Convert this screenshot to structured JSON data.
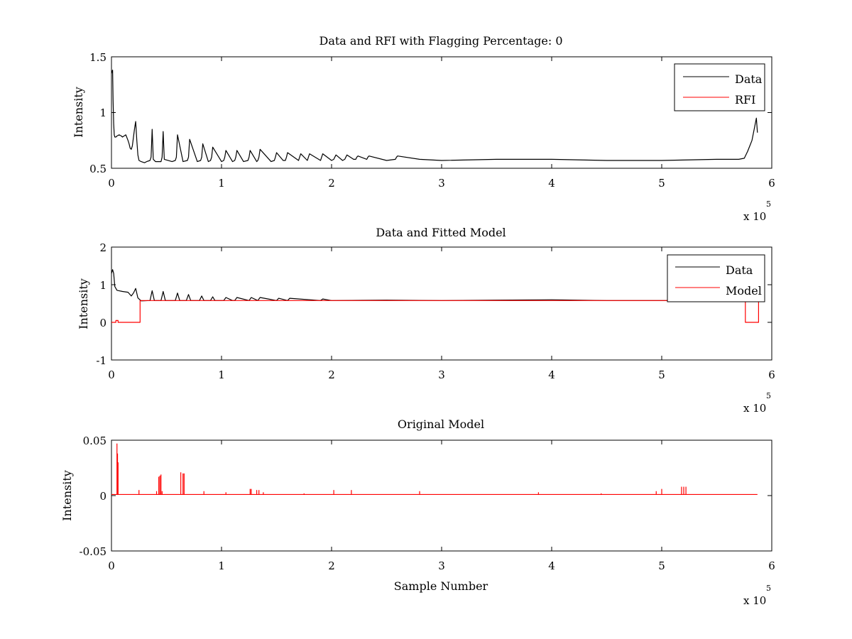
{
  "figure": {
    "background": "#ffffff"
  },
  "chart_data": [
    {
      "type": "line",
      "title": "Data and RFI with Flagging Percentage: 0",
      "xlabel": "",
      "ylabel": "Intensity",
      "xlim": [
        0,
        6
      ],
      "ylim": [
        0.5,
        1.5
      ],
      "xticks": [
        "0",
        "1",
        "2",
        "3",
        "4",
        "5",
        "6"
      ],
      "yticks": [
        "0.5",
        "1",
        "1.5"
      ],
      "x_multiplier": {
        "base": "x 10",
        "exponent": "5"
      },
      "legend": {
        "position": "top-right",
        "entries": [
          {
            "label": "Data",
            "color": "#000000"
          },
          {
            "label": "RFI",
            "color": "#ff0000"
          }
        ]
      },
      "series": [
        {
          "name": "Data",
          "color": "#000000",
          "x": [
            0,
            0.005,
            0.01,
            0.015,
            0.02,
            0.025,
            0.03,
            0.04,
            0.05,
            0.07,
            0.09,
            0.1,
            0.13,
            0.15,
            0.16,
            0.17,
            0.18,
            0.19,
            0.2,
            0.21,
            0.22,
            0.23,
            0.24,
            0.25,
            0.27,
            0.3,
            0.32,
            0.35,
            0.36,
            0.37,
            0.38,
            0.4,
            0.45,
            0.46,
            0.47,
            0.48,
            0.55,
            0.58,
            0.59,
            0.6,
            0.65,
            0.69,
            0.7,
            0.71,
            0.78,
            0.81,
            0.82,
            0.83,
            0.88,
            0.9,
            0.91,
            0.92,
            1.0,
            1.02,
            1.03,
            1.04,
            1.1,
            1.12,
            1.13,
            1.14,
            1.2,
            1.24,
            1.25,
            1.26,
            1.32,
            1.33,
            1.34,
            1.35,
            1.45,
            1.48,
            1.49,
            1.5,
            1.56,
            1.58,
            1.59,
            1.6,
            1.7,
            1.71,
            1.72,
            1.78,
            1.79,
            1.8,
            1.9,
            1.91,
            1.92,
            2.0,
            2.02,
            2.03,
            2.04,
            2.1,
            2.12,
            2.13,
            2.14,
            2.2,
            2.22,
            2.23,
            2.24,
            2.32,
            2.33,
            2.34,
            2.5,
            2.58,
            2.59,
            2.6,
            2.8,
            3.0,
            3.5,
            4.0,
            4.5,
            5.0,
            5.5,
            5.7,
            5.75,
            5.78,
            5.8,
            5.82,
            5.84,
            5.86,
            5.87
          ],
          "y": [
            1.35,
            1.37,
            1.38,
            1.1,
            0.9,
            0.8,
            0.78,
            0.78,
            0.79,
            0.8,
            0.79,
            0.78,
            0.8,
            0.75,
            0.72,
            0.68,
            0.67,
            0.7,
            0.78,
            0.86,
            0.92,
            0.75,
            0.62,
            0.57,
            0.56,
            0.55,
            0.56,
            0.57,
            0.6,
            0.85,
            0.58,
            0.56,
            0.56,
            0.6,
            0.83,
            0.58,
            0.56,
            0.57,
            0.6,
            0.8,
            0.56,
            0.57,
            0.6,
            0.76,
            0.56,
            0.57,
            0.6,
            0.72,
            0.56,
            0.57,
            0.6,
            0.69,
            0.56,
            0.57,
            0.6,
            0.66,
            0.56,
            0.57,
            0.6,
            0.66,
            0.56,
            0.57,
            0.6,
            0.66,
            0.56,
            0.57,
            0.6,
            0.67,
            0.56,
            0.57,
            0.6,
            0.64,
            0.57,
            0.57,
            0.6,
            0.64,
            0.57,
            0.6,
            0.63,
            0.57,
            0.6,
            0.63,
            0.57,
            0.6,
            0.63,
            0.57,
            0.58,
            0.6,
            0.62,
            0.57,
            0.58,
            0.6,
            0.62,
            0.58,
            0.58,
            0.6,
            0.61,
            0.58,
            0.6,
            0.61,
            0.57,
            0.58,
            0.6,
            0.61,
            0.58,
            0.57,
            0.58,
            0.58,
            0.57,
            0.57,
            0.58,
            0.58,
            0.59,
            0.65,
            0.7,
            0.75,
            0.85,
            0.95,
            0.82
          ]
        },
        {
          "name": "RFI",
          "color": "#ff0000",
          "x": [],
          "y": []
        }
      ]
    },
    {
      "type": "line",
      "title": "Data and Fitted Model",
      "xlabel": "",
      "ylabel": "Intensity",
      "xlim": [
        0,
        6
      ],
      "ylim": [
        -1,
        2
      ],
      "xticks": [
        "0",
        "1",
        "2",
        "3",
        "4",
        "5",
        "6"
      ],
      "yticks": [
        "-1",
        "0",
        "1",
        "2"
      ],
      "x_multiplier": {
        "base": "x 10",
        "exponent": "5"
      },
      "legend": {
        "position": "top-right",
        "entries": [
          {
            "label": "Data",
            "color": "#000000"
          },
          {
            "label": "Model",
            "color": "#ff0000"
          }
        ]
      },
      "series": [
        {
          "name": "Data",
          "color": "#000000",
          "x": [
            0,
            0.01,
            0.02,
            0.03,
            0.05,
            0.1,
            0.15,
            0.18,
            0.2,
            0.22,
            0.24,
            0.27,
            0.35,
            0.37,
            0.39,
            0.45,
            0.47,
            0.49,
            0.58,
            0.6,
            0.62,
            0.68,
            0.7,
            0.72,
            0.8,
            0.82,
            0.84,
            0.9,
            0.92,
            0.94,
            1.02,
            1.04,
            1.1,
            1.12,
            1.14,
            1.25,
            1.27,
            1.33,
            1.35,
            1.5,
            1.52,
            1.6,
            1.62,
            1.9,
            1.92,
            2.0,
            2.5,
            3.0,
            3.5,
            4.0,
            4.5,
            5.0,
            5.5,
            5.8,
            5.87
          ],
          "y": [
            1.3,
            1.4,
            1.3,
            0.95,
            0.85,
            0.82,
            0.8,
            0.7,
            0.78,
            0.9,
            0.65,
            0.57,
            0.58,
            0.84,
            0.58,
            0.58,
            0.82,
            0.58,
            0.58,
            0.78,
            0.58,
            0.58,
            0.74,
            0.58,
            0.58,
            0.7,
            0.58,
            0.58,
            0.68,
            0.58,
            0.58,
            0.66,
            0.58,
            0.58,
            0.66,
            0.58,
            0.66,
            0.58,
            0.66,
            0.58,
            0.64,
            0.58,
            0.64,
            0.58,
            0.62,
            0.58,
            0.59,
            0.58,
            0.59,
            0.6,
            0.58,
            0.58,
            0.58,
            0.58,
            0.58
          ]
        },
        {
          "name": "Model",
          "color": "#ff0000",
          "x": [
            0,
            0.04,
            0.04,
            0.06,
            0.06,
            0.26,
            0.26,
            5.76,
            5.76,
            5.88,
            5.88
          ],
          "y": [
            0,
            0,
            0.05,
            0.05,
            0,
            0,
            0.58,
            0.58,
            0,
            0,
            0.58
          ]
        }
      ]
    },
    {
      "type": "line",
      "title": "Original Model",
      "xlabel": "Sample Number",
      "ylabel": "Intensity",
      "xlim": [
        0,
        6
      ],
      "ylim": [
        -0.05,
        0.05
      ],
      "xticks": [
        "0",
        "1",
        "2",
        "3",
        "4",
        "5",
        "6"
      ],
      "yticks": [
        "-0.05",
        "0",
        "0.05"
      ],
      "x_multiplier": {
        "base": "x 10",
        "exponent": "5"
      },
      "legend": null,
      "series": [
        {
          "name": "",
          "color": "#ff0000",
          "baseline": {
            "x": [
              0,
              5.87
            ],
            "y": 0.001
          },
          "spikes": {
            "x": [
              0.05,
              0.055,
              0.06,
              0.25,
              0.41,
              0.43,
              0.44,
              0.45,
              0.46,
              0.63,
              0.65,
              0.66,
              0.84,
              1.04,
              1.26,
              1.27,
              1.32,
              1.34,
              1.38,
              1.75,
              2.02,
              2.18,
              2.8,
              3.88,
              4.45,
              4.95,
              5.0,
              5.18,
              5.2,
              5.22
            ],
            "y": [
              0.047,
              0.038,
              0.03,
              0.005,
              0.004,
              0.017,
              0.018,
              0.019,
              0.004,
              0.021,
              0.02,
              0.02,
              0.004,
              0.003,
              0.006,
              0.006,
              0.005,
              0.005,
              0.003,
              0.002,
              0.005,
              0.005,
              0.004,
              0.003,
              0.002,
              0.004,
              0.006,
              0.008,
              0.008,
              0.008
            ]
          }
        }
      ]
    }
  ]
}
